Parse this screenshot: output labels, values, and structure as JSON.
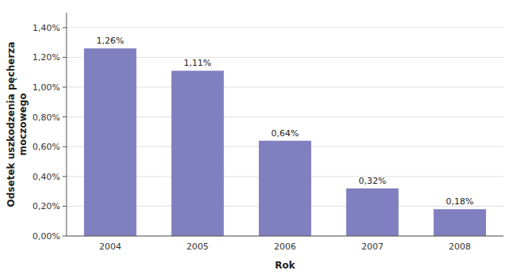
{
  "chart_data": {
    "type": "bar",
    "categories": [
      "2004",
      "2005",
      "2006",
      "2007",
      "2008"
    ],
    "values": [
      1.26,
      1.11,
      0.64,
      0.32,
      0.18
    ],
    "value_labels": [
      "1,26%",
      "1,11%",
      "0,64%",
      "0,32%",
      "0,18%"
    ],
    "data_labels": true,
    "color": "#8080c0",
    "xlabel": "Rok",
    "ylabel": "Odsetek uszkodzenia pęcherza\nmoczowego",
    "ylim": [
      0,
      1.5
    ],
    "yticks": [
      {
        "value": 0.0,
        "label": "0,00%"
      },
      {
        "value": 0.2,
        "label": "0,20%"
      },
      {
        "value": 0.4,
        "label": "0,40%"
      },
      {
        "value": 0.6,
        "label": "0,60%"
      },
      {
        "value": 0.8,
        "label": "0,80%"
      },
      {
        "value": 1.0,
        "label": "1,00%"
      },
      {
        "value": 1.2,
        "label": "1,20%"
      },
      {
        "value": 1.4,
        "label": "1,40%"
      }
    ],
    "grid": true
  }
}
